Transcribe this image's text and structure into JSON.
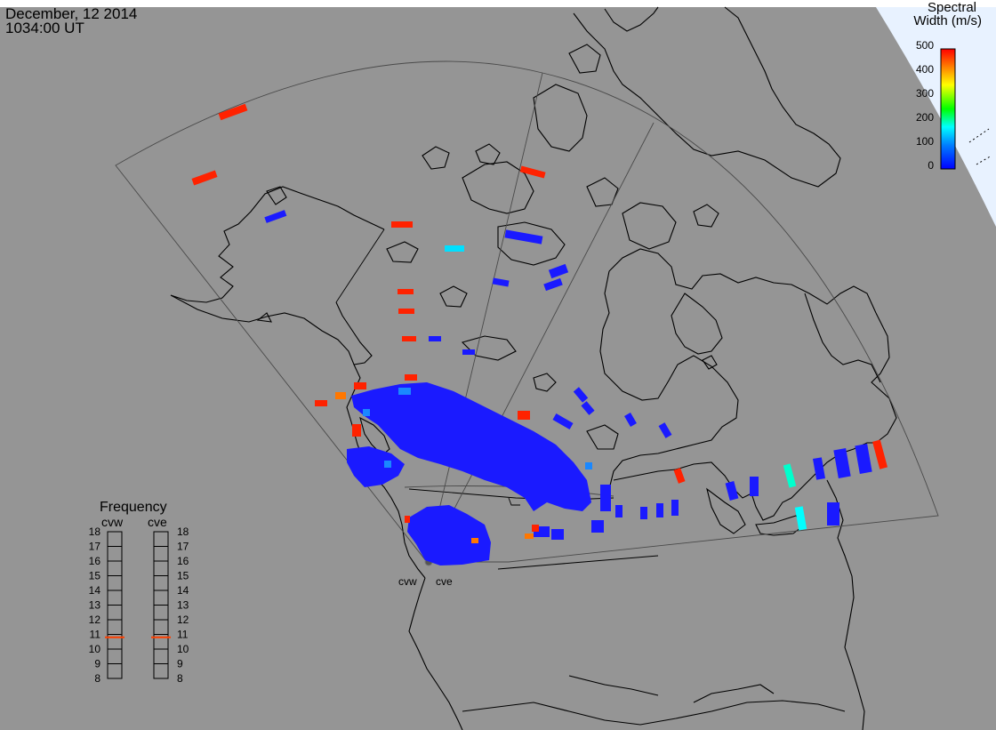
{
  "header": {
    "date": "December, 12 2014",
    "time": "1034:00 UT"
  },
  "colorbar": {
    "title_line1": "Spectral",
    "title_line2": "Width (m/s)",
    "ticks": [
      "500",
      "400",
      "300",
      "200",
      "100",
      "0"
    ],
    "colors": [
      "#ff0000",
      "#ff7f00",
      "#ffff00",
      "#00ff00",
      "#00ffff",
      "#0000ff"
    ]
  },
  "radars": {
    "west_label": "cvw",
    "east_label": "cve"
  },
  "frequency_panel": {
    "title": "Frequency",
    "col_west": "cvw",
    "col_east": "cve",
    "scale": [
      "18",
      "17",
      "16",
      "15",
      "14",
      "13",
      "12",
      "11",
      "10",
      "9",
      "8"
    ],
    "cvw_value": 10.8,
    "cve_value": 10.8,
    "marker_color": "#ff4000"
  },
  "colors": {
    "background": "#959595",
    "coast": "#000000",
    "grid": "#4a4a4a",
    "earth_edge": "#e8f2ff",
    "scatter_blue": "#1a1aff"
  }
}
